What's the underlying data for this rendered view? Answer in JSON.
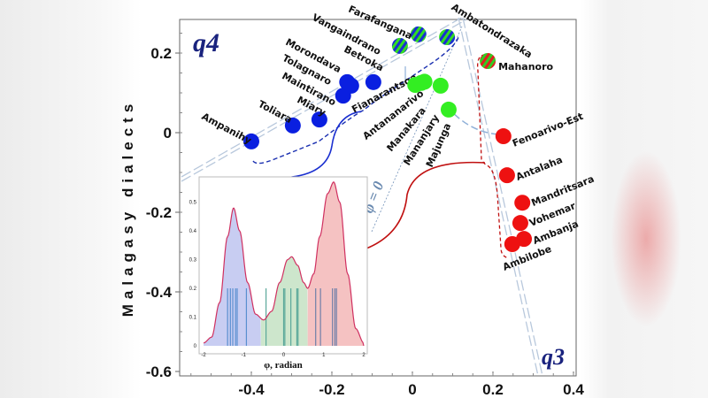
{
  "chart_data": {
    "type": "scatter",
    "ylabel": "Malagasy dialects",
    "xlabel": "",
    "xlim": [
      -0.56,
      0.405
    ],
    "ylim": [
      -0.6,
      0.28
    ],
    "x_ticks": [
      "-0.4",
      "-0.2",
      "0",
      "0.2",
      "0.4"
    ],
    "x_tick_values": [
      -0.4,
      -0.2,
      0,
      0.2,
      0.4
    ],
    "y_ticks": [
      "0.2",
      "0",
      "-0.2",
      "-0.4",
      "-0.6"
    ],
    "y_tick_values": [
      0.2,
      0,
      -0.2,
      -0.4,
      -0.6
    ],
    "quadrant_labels": {
      "q4": "q4",
      "q3": "q3"
    },
    "phi_zero_label": "φ = 0",
    "colors": {
      "blue": "#0a1fe0",
      "green": "#33ee22",
      "red": "#ee1111",
      "axis_label": "#1a237e"
    },
    "series": [
      {
        "name": "blue",
        "points": [
          {
            "label": "Ampanihy",
            "x": -0.4,
            "y": -0.022
          },
          {
            "label": "Toliara",
            "x": -0.297,
            "y": 0.018
          },
          {
            "label": "Miary",
            "x": -0.231,
            "y": 0.033
          },
          {
            "label": "Maintirano",
            "x": -0.172,
            "y": 0.093
          },
          {
            "label": "Tolagnaro",
            "x": -0.162,
            "y": 0.127
          },
          {
            "label": "Morondava",
            "x": -0.152,
            "y": 0.118
          },
          {
            "label": "Betroka",
            "x": -0.097,
            "y": 0.127
          }
        ]
      },
      {
        "name": "green",
        "points": [
          {
            "label": "Fianarantsoa",
            "x": 0.022,
            "y": 0.125
          },
          {
            "label": "Antananarivo",
            "x": 0.03,
            "y": 0.128
          },
          {
            "label": "Manakara",
            "x": 0.007,
            "y": 0.12
          },
          {
            "label": "Mananjary",
            "x": 0.07,
            "y": 0.118
          },
          {
            "label": "Majunga",
            "x": 0.09,
            "y": 0.058
          }
        ]
      },
      {
        "name": "blue-green",
        "points": [
          {
            "label": "Vangaindrano",
            "x": -0.031,
            "y": 0.218
          },
          {
            "label": "Farafangana",
            "x": 0.015,
            "y": 0.247
          },
          {
            "label": "Ambatondrazaka",
            "x": 0.086,
            "y": 0.24
          }
        ]
      },
      {
        "name": "red-green",
        "points": [
          {
            "label": "Mahanoro",
            "x": 0.187,
            "y": 0.18
          }
        ]
      },
      {
        "name": "red",
        "points": [
          {
            "label": "Fenoarivo-Est",
            "x": 0.226,
            "y": -0.009
          },
          {
            "label": "Antalaha",
            "x": 0.235,
            "y": -0.107
          },
          {
            "label": "Mandritsara",
            "x": 0.273,
            "y": -0.176
          },
          {
            "label": "Vohemar",
            "x": 0.268,
            "y": -0.227
          },
          {
            "label": "Ambanja",
            "x": 0.277,
            "y": -0.267
          },
          {
            "label": "Ambilobe",
            "x": 0.248,
            "y": -0.28
          }
        ]
      }
    ],
    "inset": {
      "type": "area",
      "xlabel": "φ, radian",
      "xlim": [
        -2,
        2
      ],
      "ylim": [
        0,
        0.55
      ],
      "x_ticks": [
        "-2",
        "-1",
        "0",
        "1",
        "2"
      ],
      "x_tick_values": [
        -2,
        -1,
        0,
        1,
        2
      ],
      "y_ticks": [
        "0",
        "0.1",
        "0.2",
        "0.3",
        "0.4",
        "0.5"
      ],
      "y_tick_values": [
        0,
        0.1,
        0.2,
        0.3,
        0.4,
        0.5
      ],
      "density": {
        "x": [
          -2.0,
          -1.8,
          -1.6,
          -1.4,
          -1.25,
          -1.1,
          -0.9,
          -0.7,
          -0.5,
          -0.3,
          -0.1,
          0.1,
          0.2,
          0.35,
          0.5,
          0.6,
          0.75,
          0.9,
          1.1,
          1.25,
          1.4,
          1.6,
          1.8,
          2.0
        ],
        "y": [
          0.01,
          0.03,
          0.15,
          0.38,
          0.48,
          0.4,
          0.22,
          0.11,
          0.09,
          0.12,
          0.22,
          0.3,
          0.31,
          0.28,
          0.22,
          0.2,
          0.25,
          0.38,
          0.53,
          0.57,
          0.5,
          0.25,
          0.06,
          0.01
        ]
      },
      "regions": [
        {
          "name": "blue",
          "from": -2,
          "to": -0.57,
          "color": "#c8cdf2"
        },
        {
          "name": "green",
          "from": -0.57,
          "to": 0.6,
          "color": "#cde6cc"
        },
        {
          "name": "red",
          "from": 0.6,
          "to": 2,
          "color": "#f5c2c2"
        }
      ],
      "rug_height": 0.2,
      "rug": [
        {
          "x": -1.4,
          "c": "#5a8fd0"
        },
        {
          "x": -1.33,
          "c": "#5a8fd0"
        },
        {
          "x": -1.27,
          "c": "#5a8fd0"
        },
        {
          "x": -1.2,
          "c": "#5a8fd0"
        },
        {
          "x": -1.16,
          "c": "#5a8fd0"
        },
        {
          "x": -0.93,
          "c": "#5a8fd0"
        },
        {
          "x": -0.44,
          "c": "#5aa89a"
        },
        {
          "x": 0.0,
          "c": "#5aa89a"
        },
        {
          "x": 0.03,
          "c": "#5aa89a"
        },
        {
          "x": 0.18,
          "c": "#5aa89a"
        },
        {
          "x": 0.33,
          "c": "#5aa89a"
        },
        {
          "x": 0.36,
          "c": "#5aa89a"
        },
        {
          "x": 0.8,
          "c": "#6f7fa8"
        },
        {
          "x": 0.92,
          "c": "#6f7fa8"
        },
        {
          "x": 1.22,
          "c": "#6f7fa8"
        },
        {
          "x": 1.28,
          "c": "#6f7fa8"
        },
        {
          "x": 1.32,
          "c": "#6f7fa8"
        }
      ]
    }
  }
}
